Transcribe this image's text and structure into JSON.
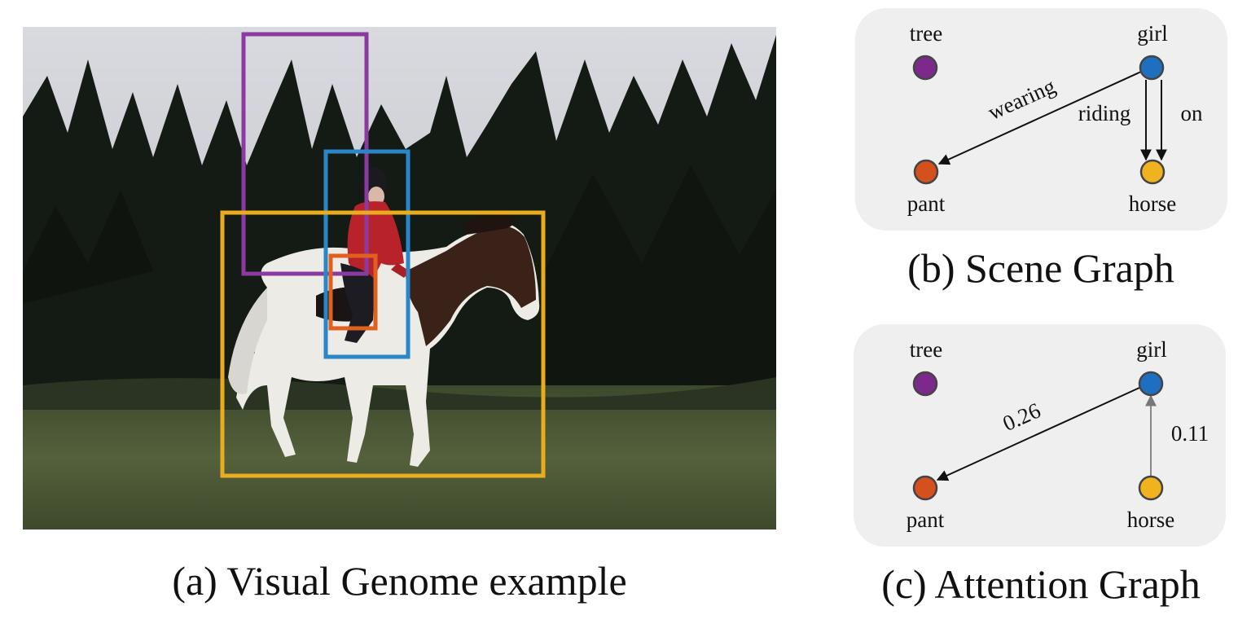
{
  "captions": {
    "a": "(a) Visual Genome example",
    "b": "(b) Scene Graph",
    "c": "(c) Attention Graph"
  },
  "colors": {
    "tree": "#7b2a8c",
    "girl": "#1f6fc0",
    "pant": "#d4501c",
    "horse": "#f0b21e",
    "panel_bg": "#efefef",
    "box_tree": "#8a3aa0",
    "box_girl": "#2a86c8",
    "box_pant": "#e0601e",
    "box_horse": "#e8ac1e"
  },
  "scene_graph": {
    "nodes": {
      "tree": "tree",
      "girl": "girl",
      "pant": "pant",
      "horse": "horse"
    },
    "edges": {
      "wearing": "wearing",
      "riding": "riding",
      "on": "on"
    }
  },
  "attention_graph": {
    "nodes": {
      "tree": "tree",
      "girl": "girl",
      "pant": "pant",
      "horse": "horse"
    },
    "edges": {
      "girl_pant": "0.26",
      "horse_girl": "0.11"
    }
  }
}
